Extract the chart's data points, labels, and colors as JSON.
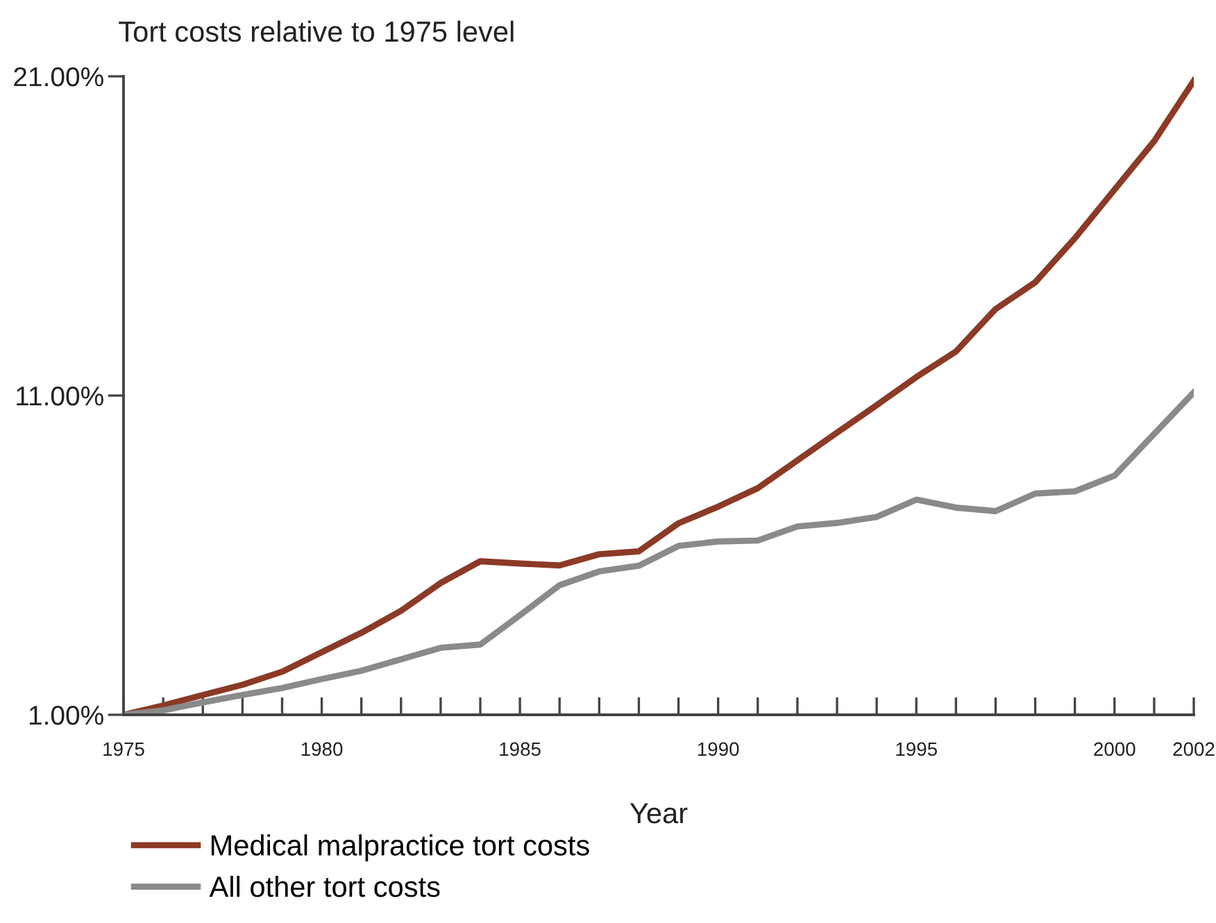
{
  "chart_data": {
    "type": "line",
    "ylabel": "Tort costs relative to 1975 level",
    "xlabel": "Year",
    "x": [
      1975,
      1976,
      1977,
      1978,
      1979,
      1980,
      1981,
      1982,
      1983,
      1984,
      1985,
      1986,
      1987,
      1988,
      1989,
      1990,
      1991,
      1992,
      1993,
      1994,
      1995,
      1996,
      1997,
      1998,
      1999,
      2000,
      2001,
      2002
    ],
    "series": [
      {
        "name": "Medical malpractice tort costs",
        "color": "#8b3a26",
        "values": [
          1.0,
          1.29,
          1.62,
          1.94,
          2.35,
          2.96,
          3.57,
          4.26,
          5.13,
          5.81,
          5.74,
          5.68,
          6.03,
          6.12,
          7.0,
          7.52,
          8.1,
          8.97,
          9.84,
          10.7,
          11.58,
          12.38,
          13.71,
          14.55,
          15.93,
          17.45,
          18.97,
          20.86
        ]
      },
      {
        "name": "All other tort costs",
        "color": "#8a8a8a",
        "values": [
          1.0,
          1.14,
          1.39,
          1.62,
          1.84,
          2.12,
          2.38,
          2.74,
          3.1,
          3.2,
          4.12,
          5.06,
          5.49,
          5.67,
          6.29,
          6.43,
          6.46,
          6.9,
          7.01,
          7.2,
          7.74,
          7.49,
          7.38,
          7.93,
          8.0,
          8.49,
          9.8,
          11.1
        ]
      }
    ],
    "xlim": [
      1975,
      2002
    ],
    "xticks": [
      {
        "value": 1975,
        "label": "1975"
      },
      {
        "value": 1976,
        "label": null
      },
      {
        "value": 1977,
        "label": null
      },
      {
        "value": 1978,
        "label": null
      },
      {
        "value": 1979,
        "label": null
      },
      {
        "value": 1980,
        "label": "1980"
      },
      {
        "value": 1981,
        "label": null
      },
      {
        "value": 1982,
        "label": null
      },
      {
        "value": 1983,
        "label": null
      },
      {
        "value": 1984,
        "label": null
      },
      {
        "value": 1985,
        "label": "1985"
      },
      {
        "value": 1986,
        "label": null
      },
      {
        "value": 1987,
        "label": null
      },
      {
        "value": 1988,
        "label": null
      },
      {
        "value": 1989,
        "label": null
      },
      {
        "value": 1990,
        "label": "1990"
      },
      {
        "value": 1991,
        "label": null
      },
      {
        "value": 1992,
        "label": null
      },
      {
        "value": 1993,
        "label": null
      },
      {
        "value": 1994,
        "label": null
      },
      {
        "value": 1995,
        "label": "1995"
      },
      {
        "value": 1996,
        "label": null
      },
      {
        "value": 1997,
        "label": null
      },
      {
        "value": 1998,
        "label": null
      },
      {
        "value": 1999,
        "label": null
      },
      {
        "value": 2000,
        "label": "2000"
      },
      {
        "value": 2001,
        "label": null
      },
      {
        "value": 2002,
        "label": "2002"
      }
    ],
    "ylim": [
      1,
      21
    ],
    "yticks": [
      {
        "value": 1,
        "label": "1.00%"
      },
      {
        "value": 11,
        "label": "11.00%"
      },
      {
        "value": 21,
        "label": "21.00%"
      }
    ],
    "grid": false,
    "legend": "bottom",
    "marker": "none",
    "line_style": "solid"
  }
}
